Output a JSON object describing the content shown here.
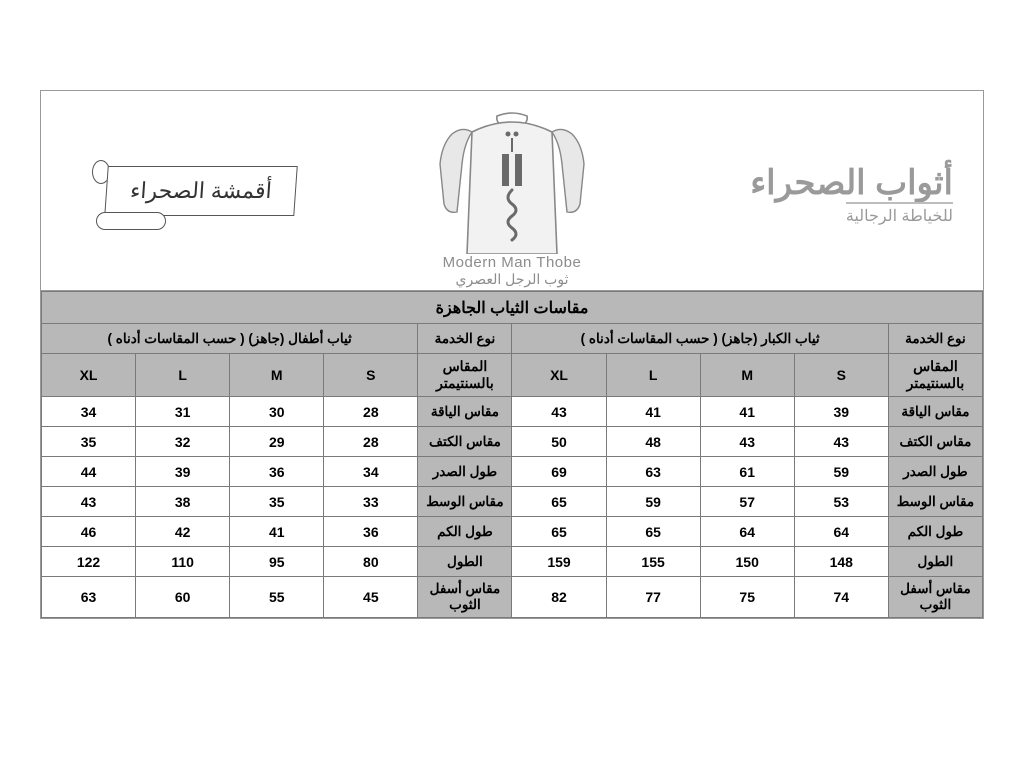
{
  "header": {
    "scroll_label": "أقمشة الصحراء",
    "center_title_en": "Modern Man Thobe",
    "center_title_ar": "ثوب الرجل العصري",
    "brand_main": "أثواب الصحراء",
    "brand_sub": "للخياطة الرجالية"
  },
  "table": {
    "title": "مقاسات الثياب الجاهزة",
    "service_label": "نوع الخدمة",
    "unit_label": "المقاس بالسنتيمتر",
    "adult_header": "ثياب الكبار (جاهز) ( حسب المقاسات أدناه )",
    "kids_header": "ثياب أطفال (جاهز) ( حسب المقاسات أدناه )",
    "sizes": [
      "XL",
      "L",
      "M",
      "S"
    ],
    "row_labels": [
      "مقاس الياقة",
      "مقاس الكتف",
      "طول الصدر",
      "مقاس الوسط",
      "طول الكم",
      "الطول",
      "مقاس أسفل الثوب"
    ],
    "adult": [
      [
        43,
        41,
        41,
        39
      ],
      [
        50,
        48,
        43,
        43
      ],
      [
        69,
        63,
        61,
        59
      ],
      [
        65,
        59,
        57,
        53
      ],
      [
        65,
        65,
        64,
        64
      ],
      [
        159,
        155,
        150,
        148
      ],
      [
        82,
        77,
        75,
        74
      ]
    ],
    "kids": [
      [
        34,
        31,
        30,
        28
      ],
      [
        35,
        32,
        29,
        28
      ],
      [
        44,
        39,
        36,
        34
      ],
      [
        43,
        38,
        35,
        33
      ],
      [
        46,
        42,
        41,
        36
      ],
      [
        122,
        110,
        95,
        80
      ],
      [
        63,
        60,
        55,
        45
      ]
    ],
    "colors": {
      "header_bg": "#b8b8b8",
      "border": "#7a7a7a",
      "cell_bg": "#ffffff",
      "text": "#000000"
    }
  }
}
